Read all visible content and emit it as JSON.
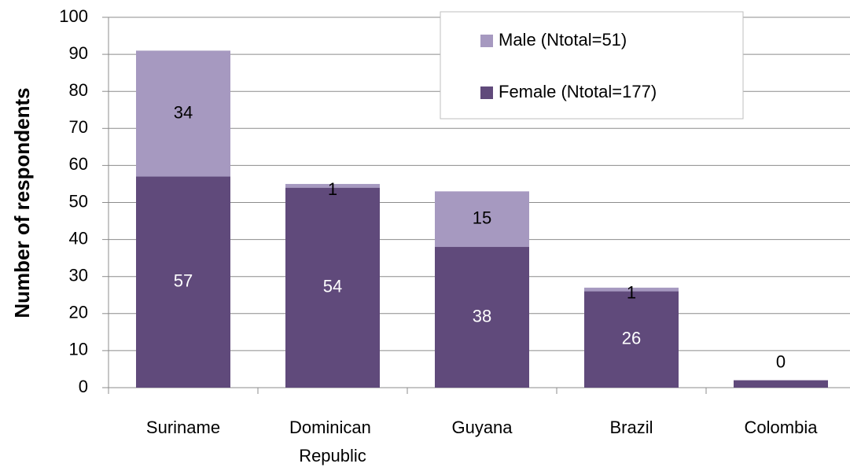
{
  "chart_data": {
    "type": "stacked-bar",
    "y_label": "Number of respondents",
    "categories": [
      "Suriname",
      "Dominican Republic",
      "Guyana",
      "Brazil",
      "Colombia"
    ],
    "series": [
      {
        "name": "Female (Ntotal=177)",
        "color": "#604a7b",
        "values": [
          57,
          54,
          38,
          26,
          2
        ]
      },
      {
        "name": "Male (Ntotal=51)",
        "color": "#a699c0",
        "values": [
          34,
          1,
          15,
          1,
          0
        ]
      }
    ],
    "ylim": [
      0,
      100
    ],
    "yticks": [
      0,
      10,
      20,
      30,
      40,
      50,
      60,
      70,
      80,
      90,
      100
    ],
    "grid": true,
    "legend": "top-right"
  }
}
